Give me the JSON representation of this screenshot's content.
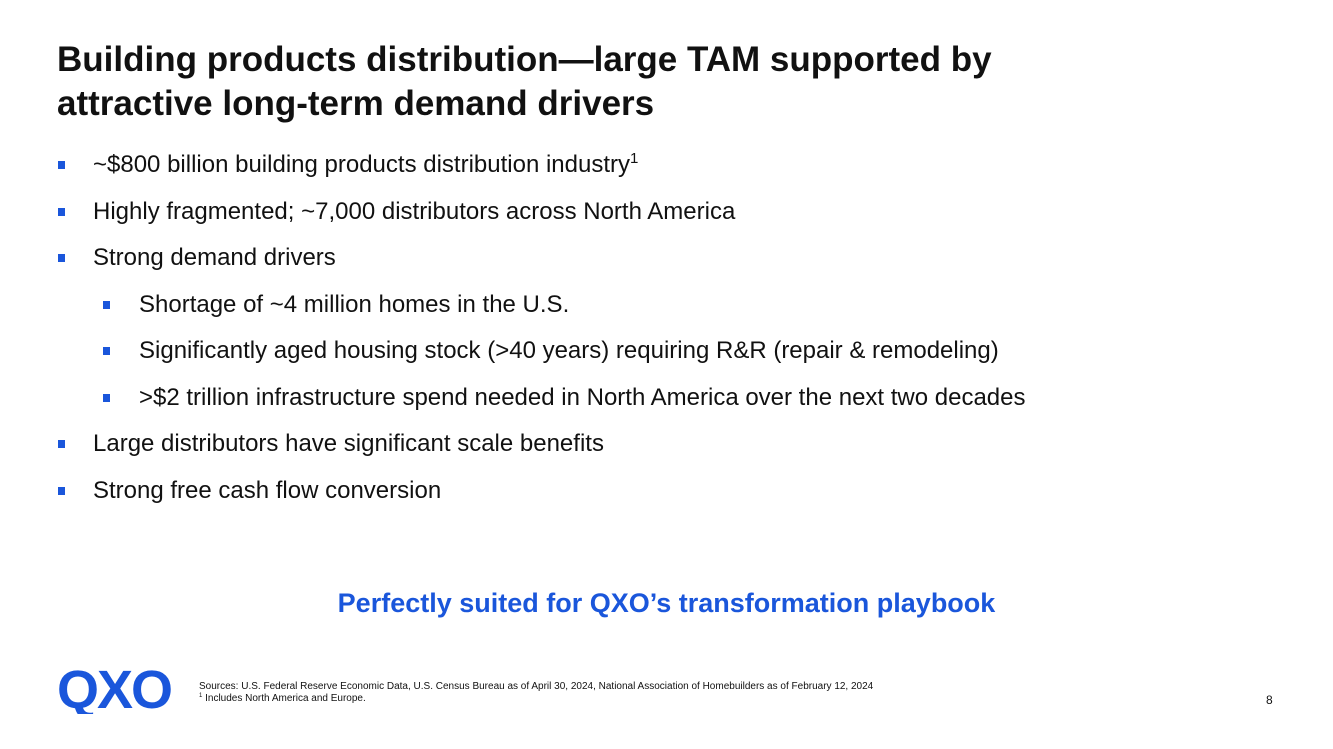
{
  "title": {
    "line1": "Building products distribution—large TAM supported by",
    "line2": "attractive long-term demand drivers"
  },
  "bullets": [
    {
      "level": 1,
      "text": "~$800 billion building products distribution industry",
      "sup": "1"
    },
    {
      "level": 1,
      "text": "Highly fragmented; ~7,000 distributors across North America"
    },
    {
      "level": 1,
      "text": "Strong demand drivers"
    },
    {
      "level": 2,
      "text": "Shortage of ~4 million homes in the U.S."
    },
    {
      "level": 2,
      "text": "Significantly aged housing stock (>40 years) requiring R&R (repair & remodeling)"
    },
    {
      "level": 2,
      "text": ">$2 trillion infrastructure spend needed in North America over the next two decades"
    },
    {
      "level": 1,
      "text": "Large distributors have significant scale benefits"
    },
    {
      "level": 1,
      "text": "Strong free cash flow conversion"
    }
  ],
  "tagline": "Perfectly suited for QXO’s transformation playbook",
  "logo": {
    "text": "QXO",
    "color": "#1a56db"
  },
  "footer": {
    "sources": "Sources: U.S. Federal Reserve Economic Data, U.S. Census Bureau as of April 30, 2024, National Association of Homebuilders as of February 12, 2024",
    "note_marker": "1",
    "note": "Includes North America and Europe.",
    "page_number": "8"
  },
  "colors": {
    "accent": "#1a56db",
    "text": "#111111",
    "background": "#ffffff"
  }
}
